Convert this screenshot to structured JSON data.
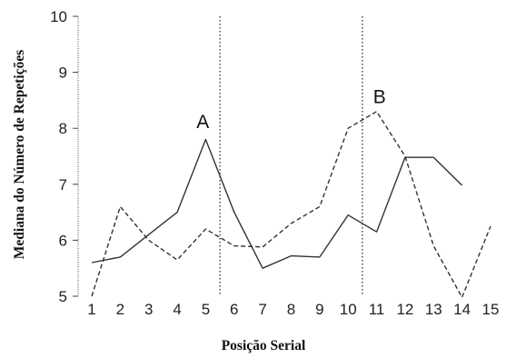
{
  "chart_data": {
    "type": "line",
    "title": "",
    "xlabel": "Posição Serial",
    "ylabel": "Mediana do Número de Repetições",
    "x": [
      1,
      2,
      3,
      4,
      5,
      6,
      7,
      8,
      9,
      10,
      11,
      12,
      13,
      14,
      15
    ],
    "xlim": [
      0.5,
      15.5
    ],
    "ylim": [
      5,
      10
    ],
    "y_ticks": [
      5,
      6,
      7,
      8,
      9,
      10
    ],
    "grid": false,
    "legend": "none",
    "series": [
      {
        "style": "solid",
        "color": "#333333",
        "x": [
          1,
          2,
          3,
          4,
          5,
          6,
          7,
          8,
          9,
          10,
          11,
          12,
          13,
          14
        ],
        "values": [
          5.6,
          5.7,
          6.1,
          6.5,
          7.8,
          6.5,
          5.5,
          5.72,
          5.7,
          6.45,
          6.15,
          7.48,
          7.48,
          6.98
        ]
      },
      {
        "style": "dashed",
        "color": "#333333",
        "x": [
          1,
          2,
          3,
          4,
          5,
          6,
          7,
          8,
          9,
          10,
          11,
          12,
          13,
          14,
          15
        ],
        "values": [
          5.0,
          6.6,
          6.0,
          5.65,
          6.2,
          5.9,
          5.88,
          6.3,
          6.6,
          8.0,
          8.3,
          7.5,
          5.9,
          4.98,
          6.25
        ]
      }
    ],
    "vertical_lines": [
      {
        "x": 5.5,
        "style": "dotted"
      },
      {
        "x": 10.5,
        "style": "dotted"
      }
    ],
    "annotations": [
      {
        "text": "A",
        "x": 4.9,
        "y": 8.0
      },
      {
        "text": "B",
        "x": 11.1,
        "y": 8.45
      }
    ]
  }
}
